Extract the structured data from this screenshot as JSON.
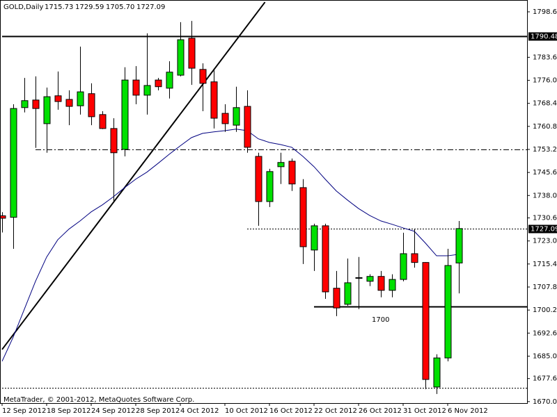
{
  "chart_data": {
    "type": "candlestick",
    "header": {
      "symbol": "GOLD,Daily",
      "values": [
        "1715.73",
        "1729.59",
        "1705.70",
        "1727.09"
      ]
    },
    "footer": "MetaTrader, © 2001-2012, MetaQuotes Software Corp.",
    "annotation": "1700",
    "categories": [
      "12 Sep 2012",
      null,
      null,
      null,
      "18 Sep 2012",
      null,
      null,
      null,
      "24 Sep 2012",
      null,
      null,
      null,
      "28 Sep 2012",
      null,
      null,
      null,
      "4 Oct 2012",
      null,
      null,
      null,
      "10 Oct 2012",
      null,
      null,
      null,
      "16 Oct 2012",
      null,
      null,
      null,
      "22 Oct 2012",
      null,
      null,
      null,
      "26 Oct 2012",
      null,
      null,
      null,
      "31 Oct 2012",
      null,
      null,
      null,
      "6 Nov 2012",
      null
    ],
    "candles": [
      {
        "open": 1731.3,
        "high": 1732.5,
        "low": 1725.8,
        "close": 1730.5
      },
      {
        "open": 1730.8,
        "high": 1768.1,
        "low": 1720.4,
        "close": 1766.7
      },
      {
        "open": 1767.0,
        "high": 1776.8,
        "low": 1765.4,
        "close": 1769.3
      },
      {
        "open": 1769.5,
        "high": 1777.3,
        "low": 1753.7,
        "close": 1766.7
      },
      {
        "open": 1761.7,
        "high": 1773.6,
        "low": 1752.1,
        "close": 1770.6
      },
      {
        "open": 1770.9,
        "high": 1778.9,
        "low": 1766.3,
        "close": 1769.0
      },
      {
        "open": 1769.7,
        "high": 1772.7,
        "low": 1761.2,
        "close": 1767.4
      },
      {
        "open": 1767.6,
        "high": 1787.1,
        "low": 1764.7,
        "close": 1772.2
      },
      {
        "open": 1771.6,
        "high": 1775.0,
        "low": 1761.2,
        "close": 1764.0
      },
      {
        "open": 1764.7,
        "high": 1765.8,
        "low": 1759.9,
        "close": 1760.1
      },
      {
        "open": 1760.1,
        "high": 1763.5,
        "low": 1736.0,
        "close": 1752.1
      },
      {
        "open": 1753.2,
        "high": 1780.3,
        "low": 1750.9,
        "close": 1776.1
      },
      {
        "open": 1776.1,
        "high": 1780.7,
        "low": 1768.1,
        "close": 1771.1
      },
      {
        "open": 1771.1,
        "high": 1791.5,
        "low": 1764.7,
        "close": 1774.3
      },
      {
        "open": 1776.1,
        "high": 1776.8,
        "low": 1772.7,
        "close": 1773.9
      },
      {
        "open": 1773.4,
        "high": 1782.3,
        "low": 1770.0,
        "close": 1778.7
      },
      {
        "open": 1777.7,
        "high": 1795.2,
        "low": 1777.3,
        "close": 1789.4
      },
      {
        "open": 1789.9,
        "high": 1795.6,
        "low": 1774.5,
        "close": 1780.0
      },
      {
        "open": 1779.6,
        "high": 1781.6,
        "low": 1765.8,
        "close": 1775.0
      },
      {
        "open": 1775.5,
        "high": 1779.6,
        "low": 1760.1,
        "close": 1763.5
      },
      {
        "open": 1765.1,
        "high": 1768.1,
        "low": 1759.0,
        "close": 1761.7
      },
      {
        "open": 1761.2,
        "high": 1773.9,
        "low": 1759.0,
        "close": 1767.0
      },
      {
        "open": 1767.4,
        "high": 1772.7,
        "low": 1752.1,
        "close": 1753.9
      },
      {
        "open": 1750.9,
        "high": 1752.1,
        "low": 1728.0,
        "close": 1736.0
      },
      {
        "open": 1736.0,
        "high": 1746.8,
        "low": 1734.2,
        "close": 1745.9
      },
      {
        "open": 1747.5,
        "high": 1752.1,
        "low": 1741.8,
        "close": 1748.9
      },
      {
        "open": 1749.3,
        "high": 1750.2,
        "low": 1739.5,
        "close": 1741.8
      },
      {
        "open": 1740.6,
        "high": 1743.4,
        "low": 1715.4,
        "close": 1721.1
      },
      {
        "open": 1720.0,
        "high": 1728.7,
        "low": 1713.1,
        "close": 1728.0
      },
      {
        "open": 1728.0,
        "high": 1728.7,
        "low": 1703.9,
        "close": 1706.2
      },
      {
        "open": 1707.4,
        "high": 1713.1,
        "low": 1698.2,
        "close": 1700.9
      },
      {
        "open": 1702.1,
        "high": 1717.2,
        "low": 1701.6,
        "close": 1709.2
      },
      {
        "open": 1710.8,
        "high": 1717.7,
        "low": 1700.5,
        "close": 1710.9
      },
      {
        "open": 1709.7,
        "high": 1712.0,
        "low": 1708.1,
        "close": 1711.3
      },
      {
        "open": 1711.3,
        "high": 1713.1,
        "low": 1704.4,
        "close": 1706.7
      },
      {
        "open": 1706.7,
        "high": 1712.0,
        "low": 1704.4,
        "close": 1710.3
      },
      {
        "open": 1710.3,
        "high": 1725.7,
        "low": 1709.7,
        "close": 1718.8
      },
      {
        "open": 1718.8,
        "high": 1726.9,
        "low": 1714.2,
        "close": 1715.9
      },
      {
        "open": 1715.9,
        "high": 1716.0,
        "low": 1674.1,
        "close": 1677.3
      },
      {
        "open": 1674.8,
        "high": 1685.6,
        "low": 1672.5,
        "close": 1684.4
      },
      {
        "open": 1684.4,
        "high": 1720.4,
        "low": 1683.3,
        "close": 1714.9
      },
      {
        "open": 1715.73,
        "high": 1729.59,
        "low": 1705.7,
        "close": 1727.09
      }
    ],
    "bull_color": "#00e000",
    "bear_color": "#ff0000",
    "moving_average": {
      "color": "#000080",
      "values": [
        1683.3,
        1691.3,
        1700.5,
        1709.7,
        1717.7,
        1723.4,
        1726.9,
        1729.6,
        1732.6,
        1734.9,
        1737.6,
        1740.6,
        1743.4,
        1745.7,
        1748.6,
        1751.6,
        1754.4,
        1757.1,
        1758.5,
        1759.0,
        1759.4,
        1759.9,
        1759.4,
        1756.7,
        1755.5,
        1754.8,
        1753.9,
        1750.9,
        1747.5,
        1743.4,
        1739.5,
        1736.5,
        1733.7,
        1731.4,
        1729.6,
        1728.5,
        1727.3,
        1726.2,
        1722.3,
        1718.1,
        1718.1,
        1718.6
      ]
    },
    "trendline": {
      "points": [
        [
          0,
          1687.2
        ],
        [
          23.6,
          1801.8
        ]
      ]
    },
    "levels": [
      {
        "value": 1790.48,
        "style": "solid",
        "start": 0,
        "tag": true
      },
      {
        "value": 1753.2,
        "style": "dashdot",
        "start": 3,
        "tag": false
      },
      {
        "value": 1727.09,
        "style": "dashed",
        "start": 22,
        "tag": true
      },
      {
        "value": 1701.3,
        "style": "solid",
        "start": 28,
        "tag": false
      },
      {
        "value": 1674.6,
        "style": "dashed",
        "start": 0,
        "tag": false
      }
    ],
    "ylim": [
      1669.5,
      1802.5
    ],
    "yticks": [
      {
        "value": 1798.6,
        "label": "1798.60"
      },
      {
        "value": 1783.6,
        "label": "1783.60"
      },
      {
        "value": 1776.0,
        "label": "1776.00"
      },
      {
        "value": 1768.4,
        "label": "1768.40"
      },
      {
        "value": 1760.8,
        "label": "1760.80"
      },
      {
        "value": 1753.2,
        "label": "1753.20"
      },
      {
        "value": 1745.6,
        "label": "1745.60"
      },
      {
        "value": 1738.0,
        "label": "1738.00"
      },
      {
        "value": 1730.6,
        "label": "1730.60"
      },
      {
        "value": 1723.0,
        "label": "1723.00"
      },
      {
        "value": 1715.4,
        "label": "1715.40"
      },
      {
        "value": 1707.8,
        "label": "1707.80"
      },
      {
        "value": 1700.2,
        "label": "1700.20"
      },
      {
        "value": 1692.6,
        "label": "1692.60"
      },
      {
        "value": 1685.0,
        "label": "1685.00"
      },
      {
        "value": 1677.6,
        "label": "1677.60"
      },
      {
        "value": 1670.0,
        "label": "1670.00"
      }
    ]
  }
}
